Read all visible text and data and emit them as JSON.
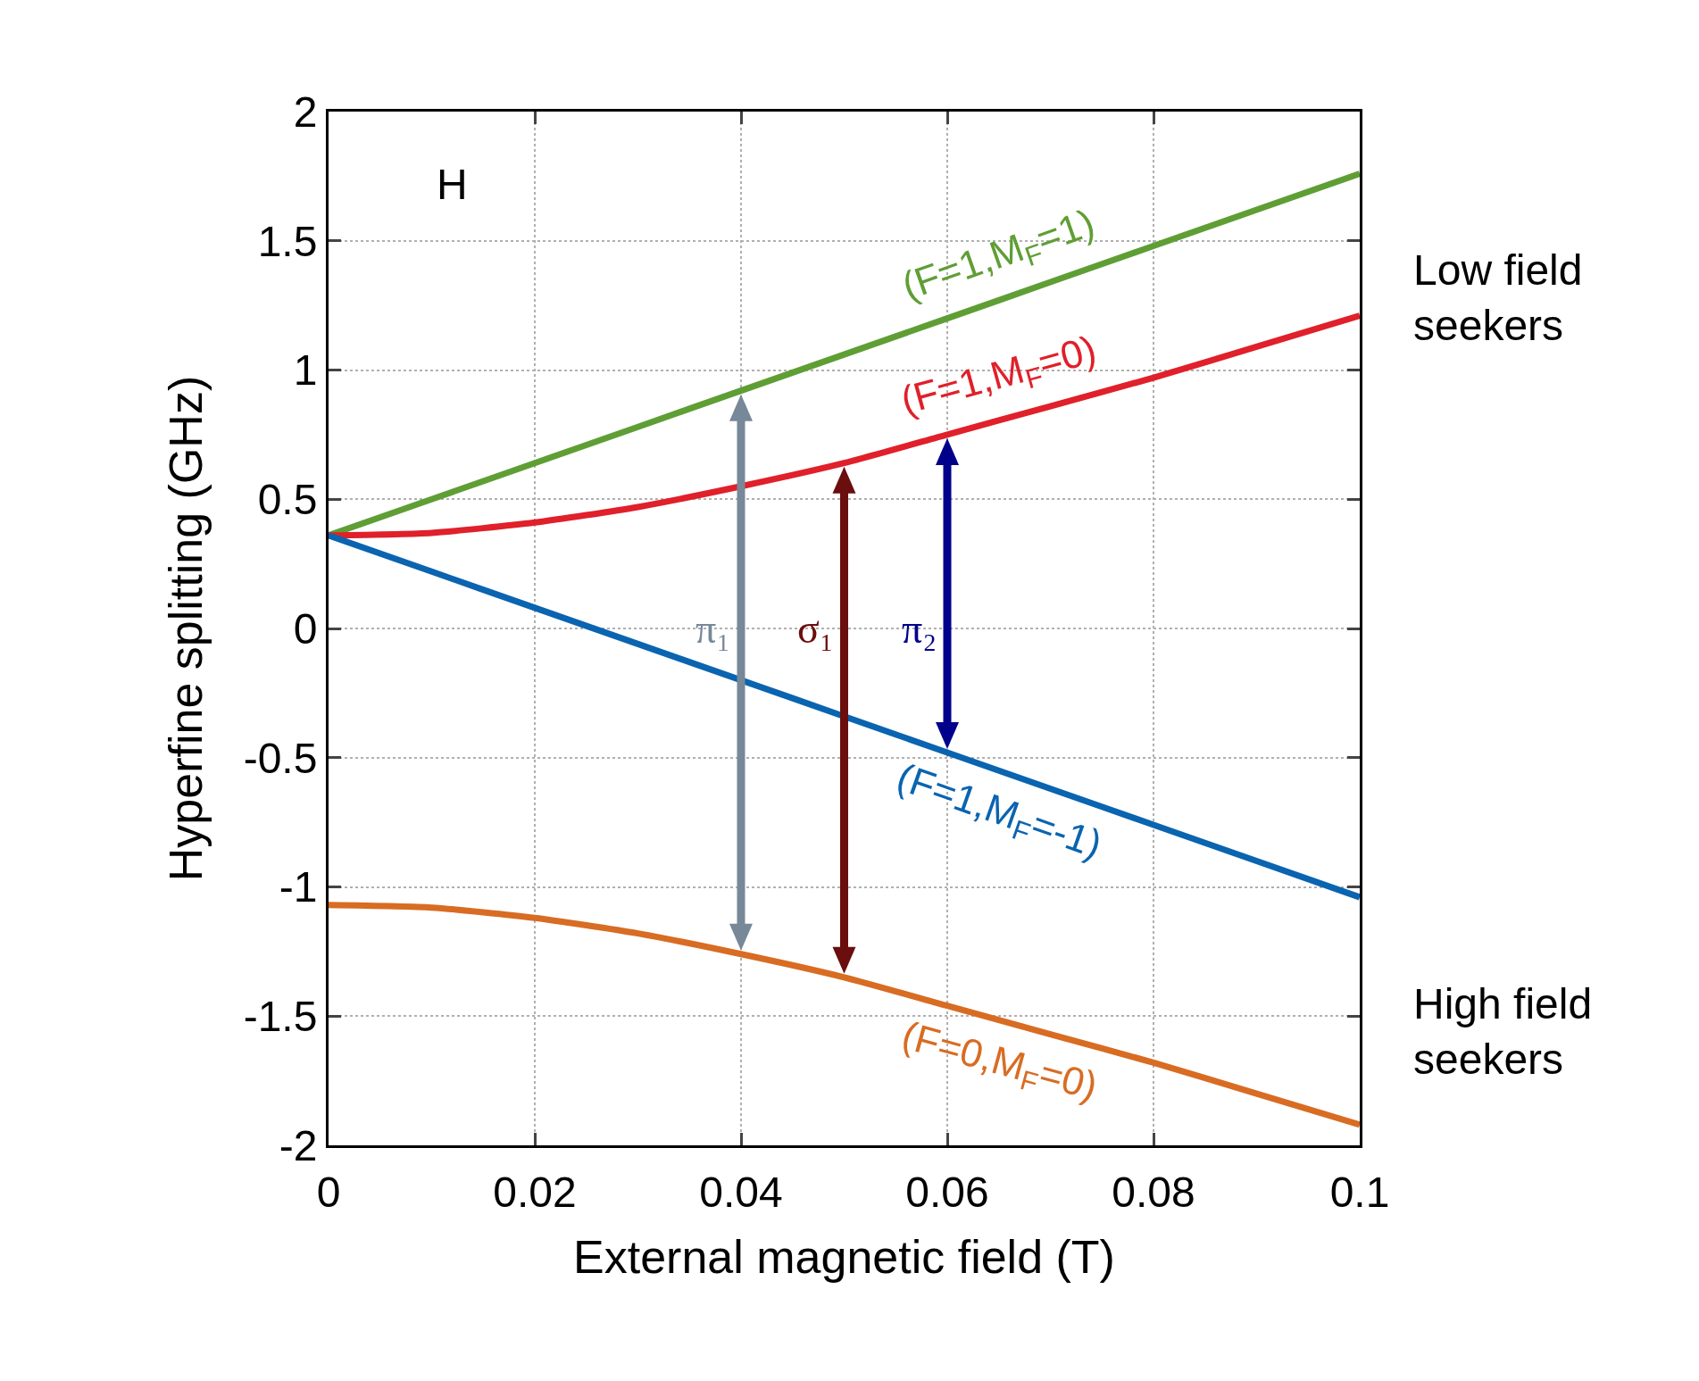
{
  "chart_data": {
    "type": "line",
    "xlabel": "External magnetic field (T)",
    "ylabel": "Hyperfine splitting (GHz)",
    "x": [
      0,
      0.01,
      0.02,
      0.03,
      0.04,
      0.05,
      0.06,
      0.07,
      0.08,
      0.09,
      0.1
    ],
    "series": [
      {
        "name": "(F=1,M$_{F}$=1)",
        "color": "#5f9e35",
        "values": [
          0.36,
          0.5,
          0.64,
          0.78,
          0.92,
          1.06,
          1.2,
          1.34,
          1.48,
          1.62,
          1.76
        ]
      },
      {
        "name": "(F=1,M$_{F}$=0)",
        "color": "#e0202a",
        "values": [
          0.36,
          0.37,
          0.41,
          0.47,
          0.55,
          0.64,
          0.75,
          0.86,
          0.97,
          1.09,
          1.21
        ]
      },
      {
        "name": "(F=1,M$_{F}$=-1)",
        "color": "#0a64b0",
        "values": [
          0.36,
          0.22,
          0.08,
          -0.06,
          -0.2,
          -0.34,
          -0.48,
          -0.62,
          -0.76,
          -0.9,
          -1.04
        ]
      },
      {
        "name": "(F=0,M$_{F}$=0)",
        "color": "#d86c23",
        "values": [
          -1.07,
          -1.08,
          -1.12,
          -1.18,
          -1.26,
          -1.35,
          -1.46,
          -1.57,
          -1.68,
          -1.8,
          -1.92
        ]
      }
    ],
    "xlim": [
      0,
      0.1
    ],
    "xticks": [
      0,
      0.02,
      0.04,
      0.06,
      0.08,
      0.1
    ],
    "ylim": [
      -2,
      2
    ],
    "yticks": [
      -2,
      -1.5,
      -1,
      -0.5,
      0,
      0.5,
      1,
      1.5,
      2
    ],
    "grid": true,
    "annotations": [
      "H",
      "Low field\nseekers",
      "High field\nseekers",
      "π₁",
      "σ₁",
      "π₂"
    ]
  }
}
